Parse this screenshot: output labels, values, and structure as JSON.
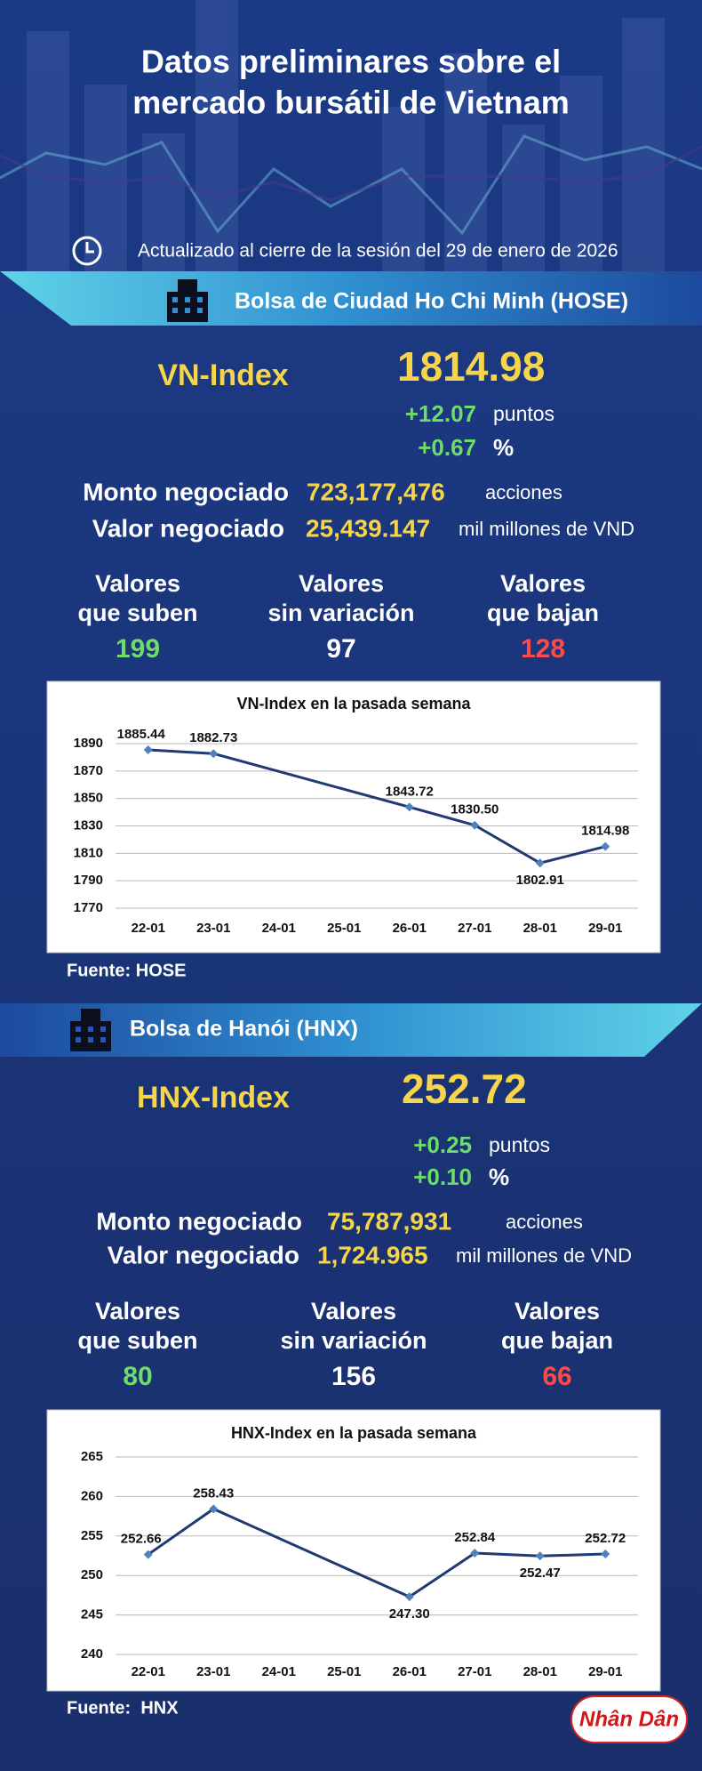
{
  "header": {
    "title": [
      "Datos preliminares sobre el",
      "mercado bursátil de Vietnam"
    ],
    "updated": "Actualizado al cierre de la sesión del 29 de enero de 2026"
  },
  "sections": [
    {
      "banner": "Bolsa de Ciudad Ho Chi Minh (HOSE)",
      "index_name": "VN-Index",
      "index_value": "1814.98",
      "change_points": "+12.07",
      "points_unit": "puntos",
      "change_pct": "+0.67",
      "pct_unit": "%",
      "volume_label": "Monto negociado",
      "volume": "723,177,476",
      "volume_unit": "acciones",
      "value_label": "Valor negociado",
      "value": "25,439.147",
      "value_unit": "mil millones de VND",
      "breadth": [
        {
          "label": [
            "Valores",
            "que suben"
          ],
          "count": "199",
          "color": "#6ddc6a"
        },
        {
          "label": [
            "Valores",
            "sin variación"
          ],
          "count": "97",
          "color": "#ffffff"
        },
        {
          "label": [
            "Valores",
            "que bajan"
          ],
          "count": "128",
          "color": "#ff4a4a"
        }
      ],
      "source": "Fuente: HOSE"
    },
    {
      "banner": "Bolsa de Hanói (HNX)",
      "index_name": "HNX-Index",
      "index_value": "252.72",
      "change_points": "+0.25",
      "points_unit": "puntos",
      "change_pct": "+0.10",
      "pct_unit": "%",
      "volume_label": "Monto negociado",
      "volume": "75,787,931",
      "volume_unit": "acciones",
      "value_label": "Valor negociado",
      "value": "1,724.965",
      "value_unit": "mil millones de VND",
      "breadth": [
        {
          "label": [
            "Valores",
            "que suben"
          ],
          "count": "80",
          "color": "#6ddc6a"
        },
        {
          "label": [
            "Valores",
            "sin variación"
          ],
          "count": "156",
          "color": "#ffffff"
        },
        {
          "label": [
            "Valores",
            "que bajan"
          ],
          "count": "66",
          "color": "#ff4a4a"
        }
      ],
      "source": "Fuente:  HNX"
    }
  ],
  "chart_data": [
    {
      "type": "line",
      "title": "VN-Index en la pasada semana",
      "categories": [
        "22-01",
        "23-01",
        "24-01",
        "25-01",
        "26-01",
        "27-01",
        "28-01",
        "29-01"
      ],
      "values": [
        1885.44,
        1882.73,
        null,
        null,
        1843.72,
        1830.5,
        1802.91,
        1814.98
      ],
      "value_labels": [
        "1885.44",
        "1882.73",
        null,
        null,
        "1843.72",
        "1830.50",
        "1802.91",
        "1814.98"
      ],
      "ylim": [
        1770,
        1890
      ],
      "yticks": [
        1770,
        1790,
        1810,
        1830,
        1850,
        1870,
        1890
      ],
      "grid": true,
      "span_gaps": true,
      "color": "#1f3a73",
      "marker_color": "#4f81bd"
    },
    {
      "type": "line",
      "title": "HNX-Index en la pasada semana",
      "categories": [
        "22-01",
        "23-01",
        "24-01",
        "25-01",
        "26-01",
        "27-01",
        "28-01",
        "29-01"
      ],
      "values": [
        252.66,
        258.43,
        null,
        null,
        247.3,
        252.84,
        252.47,
        252.72
      ],
      "value_labels": [
        "252.66",
        "258.43",
        null,
        null,
        "247.30",
        "252.84",
        "252.47",
        "252.72"
      ],
      "ylim": [
        240,
        265
      ],
      "yticks": [
        240,
        245,
        250,
        255,
        260,
        265
      ],
      "grid": true,
      "span_gaps": true,
      "color": "#1f3a73",
      "marker_color": "#4f81bd"
    }
  ],
  "footer": {
    "logo": "Nhân Dân"
  }
}
